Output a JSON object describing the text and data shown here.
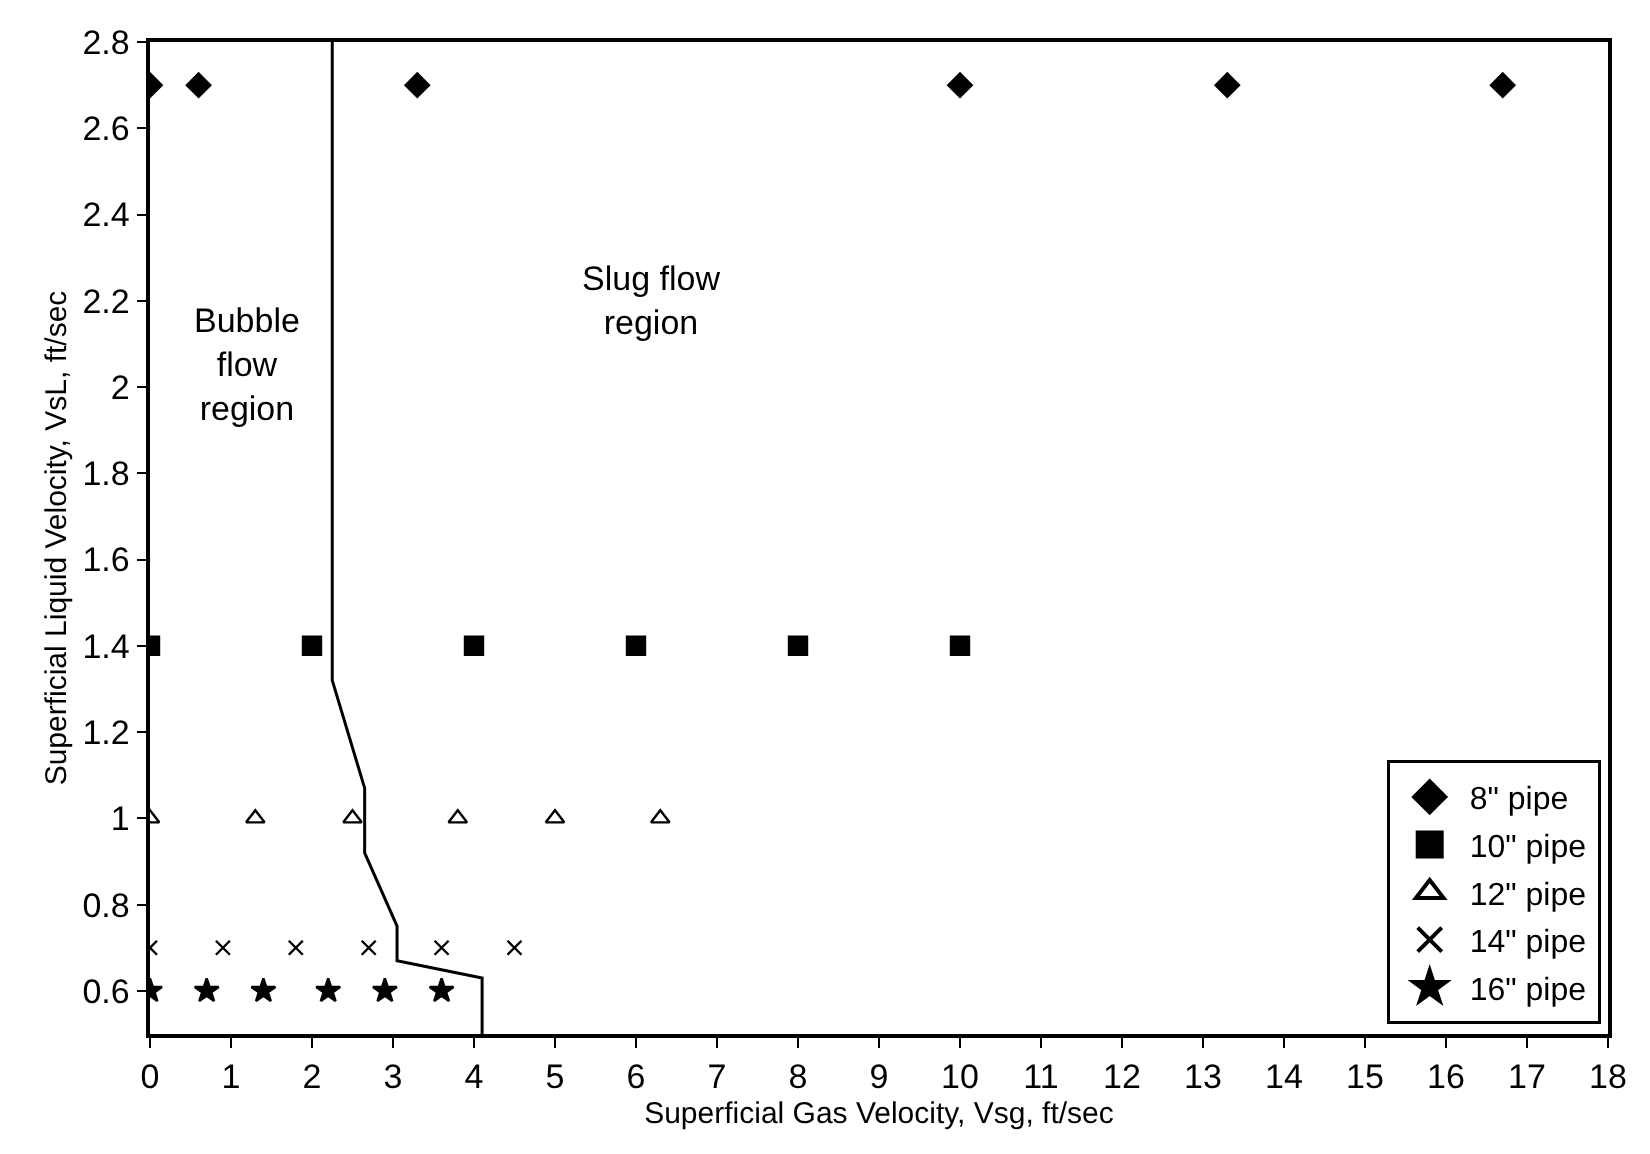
{
  "chart_data": {
    "type": "scatter",
    "xlabel": "Superficial Gas Velocity, Vsg, ft/sec",
    "ylabel": "Superficial Liquid Velocity, VsL, ft/sec",
    "xlim": [
      0,
      18
    ],
    "xticks": [
      0,
      1,
      2,
      3,
      4,
      5,
      6,
      7,
      8,
      9,
      10,
      11,
      12,
      13,
      14,
      15,
      16,
      17,
      18
    ],
    "ylim": [
      0.5,
      2.8
    ],
    "yticks": [
      0.6,
      0.8,
      1,
      1.2,
      1.4,
      1.6,
      1.8,
      2,
      2.2,
      2.4,
      2.6,
      2.8
    ],
    "grid": false,
    "legend": "bottom right",
    "annotations": [
      "Bubble\nflow\nregion",
      "Slug flow\nregion"
    ],
    "series": [
      {
        "name": "8\" pipe",
        "color": "#000000",
        "marker": "diamond",
        "x": [
          0,
          0.6,
          3.3,
          10,
          13.3,
          16.7
        ],
        "values": [
          2.7,
          2.7,
          2.7,
          2.7,
          2.7,
          2.7
        ]
      },
      {
        "name": "10\" pipe",
        "color": "#000000",
        "marker": "square",
        "x": [
          0,
          2,
          4,
          6,
          8,
          10
        ],
        "values": [
          1.4,
          1.4,
          1.4,
          1.4,
          1.4,
          1.4
        ]
      },
      {
        "name": "12\" pipe",
        "color": "#000000",
        "marker": "triangle",
        "x": [
          0,
          1.3,
          2.5,
          3.8,
          5.0,
          6.3
        ],
        "values": [
          1,
          1,
          1,
          1,
          1,
          1
        ]
      },
      {
        "name": "14\" pipe",
        "color": "#000000",
        "marker": "cross",
        "x": [
          0,
          0.9,
          1.8,
          2.7,
          3.6,
          4.5
        ],
        "values": [
          0.7,
          0.7,
          0.7,
          0.7,
          0.7,
          0.7
        ]
      },
      {
        "name": "16\" pipe",
        "color": "#000000",
        "marker": "star",
        "x": [
          0,
          0.7,
          1.4,
          2.2,
          2.9,
          3.6
        ],
        "values": [
          0.6,
          0.6,
          0.6,
          0.6,
          0.6,
          0.6
        ]
      },
      {
        "type": "line",
        "color": "#000000",
        "line_style": "solid",
        "marker": "none",
        "x": [
          2.25,
          2.25,
          2.65,
          2.65,
          3.05,
          3.05,
          4.1,
          4.1
        ],
        "values": [
          2.8,
          1.32,
          1.07,
          0.92,
          0.75,
          0.67,
          0.63,
          0.5
        ]
      }
    ]
  }
}
